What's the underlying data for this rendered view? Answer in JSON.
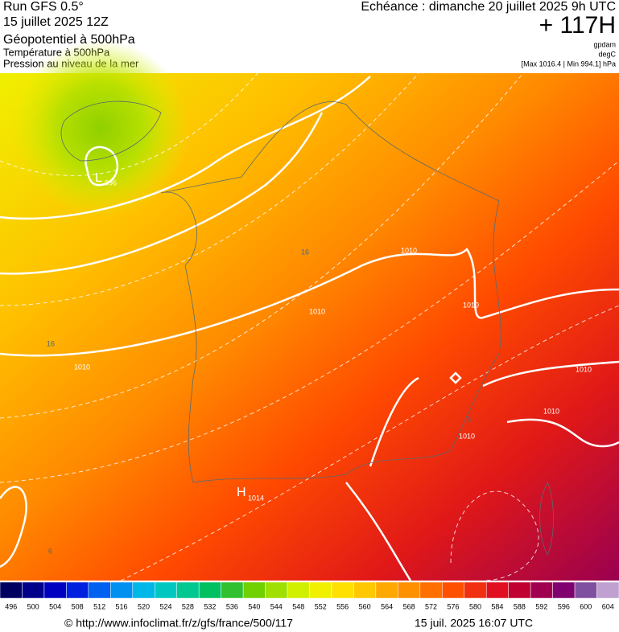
{
  "header": {
    "run": "Run GFS 0.5°",
    "date": "15 juillet 2025 12Z",
    "title": "Géopotentiel à 500hPa",
    "subtitle1": "Température à 500hPa",
    "subtitle2": "Pression au niveau de la mer",
    "echeance": "Echéance : dimanche 20 juillet 2025 9h UTC",
    "hour": "+ 117H",
    "unit1": "gpdam",
    "unit2": "degC",
    "range": "[Max 1016.4 | Min 994.1] hPa"
  },
  "map_labels": [
    "L",
    "996",
    "H",
    "1014",
    "1010",
    "1010",
    "1010",
    "1010",
    "1010",
    "1010",
    "1010",
    "16",
    "16",
    "6",
    "6"
  ],
  "colorbar": {
    "ticks": [
      496,
      500,
      504,
      508,
      512,
      516,
      520,
      524,
      528,
      532,
      536,
      540,
      544,
      548,
      552,
      556,
      560,
      564,
      568,
      572,
      576,
      580,
      584,
      588,
      592,
      596,
      600,
      604
    ],
    "colors": [
      "#000060",
      "#00008a",
      "#0000c0",
      "#0020e0",
      "#0060f0",
      "#0090f0",
      "#00b8e8",
      "#00c8c0",
      "#00c890",
      "#00c060",
      "#30c030",
      "#70d000",
      "#a0e000",
      "#d0f000",
      "#f0f000",
      "#ffe000",
      "#ffc800",
      "#ffa800",
      "#ff9000",
      "#ff7000",
      "#ff5000",
      "#f03010",
      "#e01020",
      "#c00030",
      "#a00050",
      "#800070",
      "#8050a0",
      "#c0a0d0"
    ]
  },
  "footer": {
    "source": "© http://www.infoclimat.fr/z/gfs/france/500/117",
    "timestamp": "15 juil. 2025 16:07 UTC"
  }
}
